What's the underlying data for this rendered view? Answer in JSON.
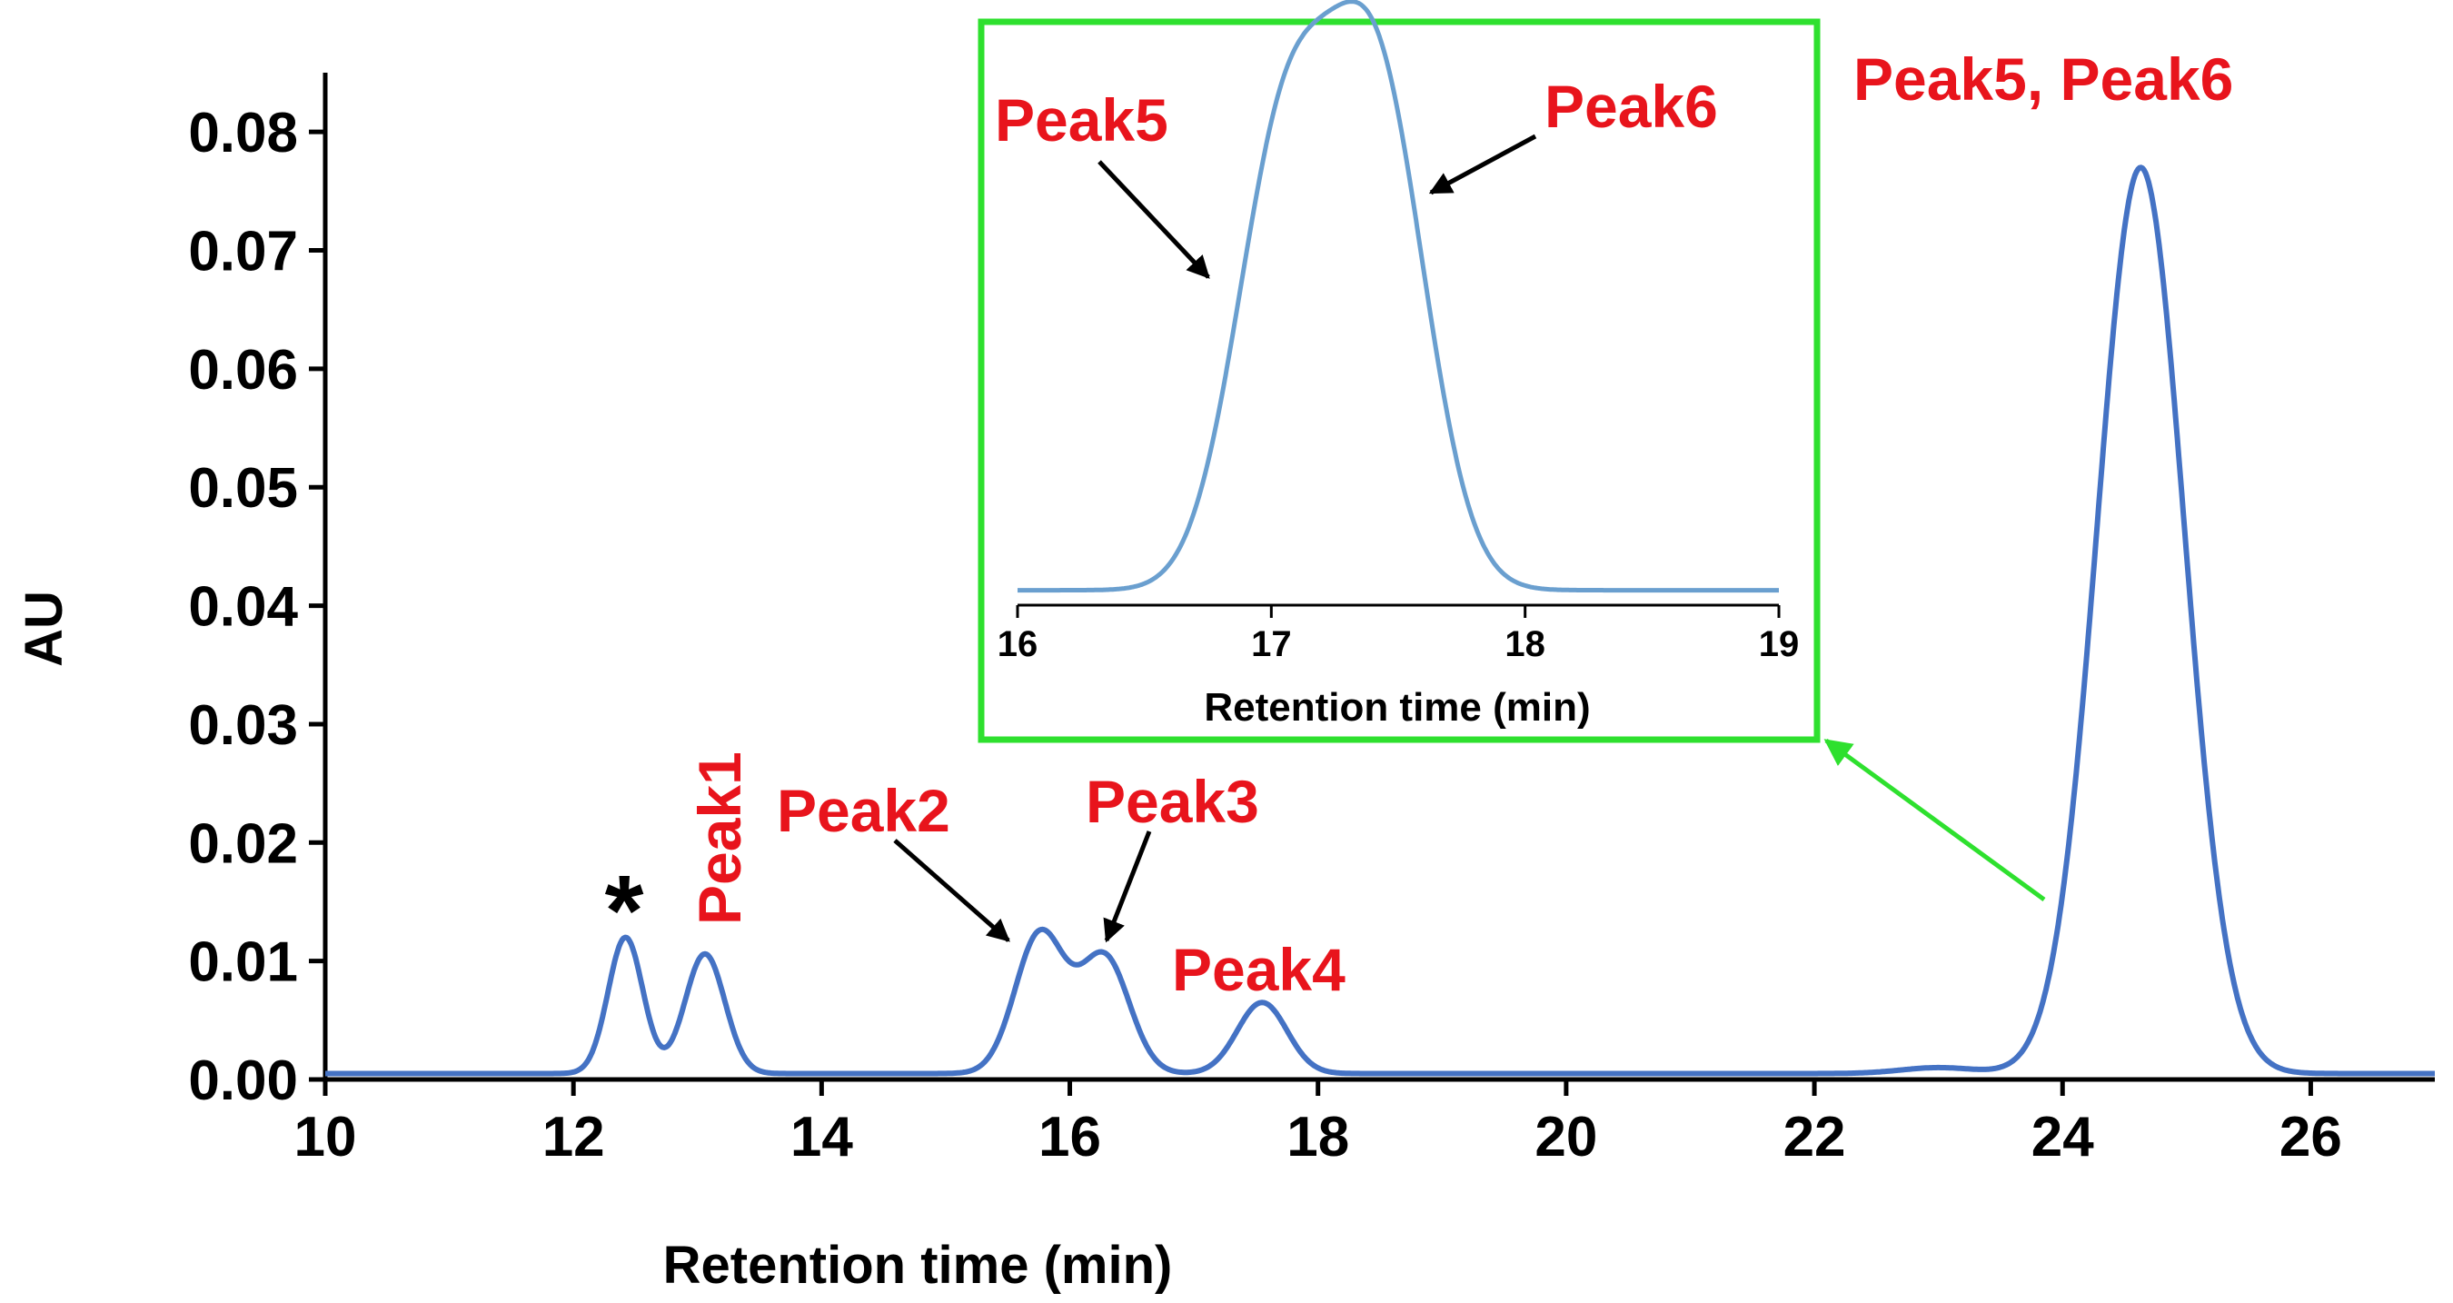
{
  "chart_data": [
    {
      "type": "line",
      "name": "main",
      "title": "",
      "xlabel": "Retention time (min)",
      "ylabel": "AU",
      "xlim": [
        10,
        27
      ],
      "ylim": [
        0,
        0.085
      ],
      "xticks": [
        10,
        12,
        14,
        16,
        18,
        20,
        22,
        24,
        26
      ],
      "xtick_labels": [
        "10",
        "12",
        "14",
        "16",
        "18",
        "20",
        "22",
        "24",
        "26"
      ],
      "yticks": [
        0,
        0.01,
        0.02,
        0.03,
        0.04,
        0.05,
        0.06,
        0.07,
        0.08
      ],
      "ytick_labels": [
        "0.00",
        "0.01",
        "0.02",
        "0.03",
        "0.04",
        "0.05",
        "0.06",
        "0.07",
        "0.08"
      ],
      "grid": false,
      "series_color": "#4472C4",
      "baseline": 0.0005,
      "peaks": [
        {
          "label": "*",
          "rt": 12.42,
          "height": 0.0115,
          "sigma": 0.14
        },
        {
          "label": "Peak1",
          "rt": 13.06,
          "height": 0.0101,
          "sigma": 0.16
        },
        {
          "label": "Peak2",
          "rt": 15.76,
          "height": 0.0118,
          "sigma": 0.2
        },
        {
          "label": "Peak3",
          "rt": 16.28,
          "height": 0.0098,
          "sigma": 0.2
        },
        {
          "label": "Peak4",
          "rt": 17.55,
          "height": 0.006,
          "sigma": 0.2
        },
        {
          "label": "",
          "rt": 23.0,
          "height": 0.0005,
          "sigma": 0.3
        },
        {
          "label": "Peak5, Peak6",
          "rt": 24.63,
          "height": 0.0765,
          "sigma": 0.35
        }
      ],
      "annotations": {
        "asterisk": "*",
        "peak1": "Peak1",
        "peak2": "Peak2",
        "peak3": "Peak3",
        "peak4": "Peak4",
        "peak56": "Peak5, Peak6"
      }
    },
    {
      "type": "line",
      "name": "inset",
      "xlabel": "Retention time (min)",
      "ylabel": "",
      "xlim": [
        16,
        19
      ],
      "ylim": [
        0,
        1
      ],
      "xticks": [
        16,
        17,
        18,
        19
      ],
      "xtick_labels": [
        "16",
        "17",
        "18",
        "19"
      ],
      "series_color": "#6A9FCF",
      "frame_color": "#2EE02E",
      "baseline": 0.02,
      "peaks": [
        {
          "label": "Peak5",
          "rt": 17.05,
          "height": 0.78,
          "sigma": 0.19
        },
        {
          "label": "Peak6",
          "rt": 17.42,
          "height": 0.87,
          "sigma": 0.19
        }
      ],
      "annotations": {
        "peak5": "Peak5",
        "peak6": "Peak6"
      }
    }
  ],
  "colors": {
    "label_red": "#E8141C",
    "axis": "#000000",
    "zoom_arrow": "#2EE02E"
  }
}
